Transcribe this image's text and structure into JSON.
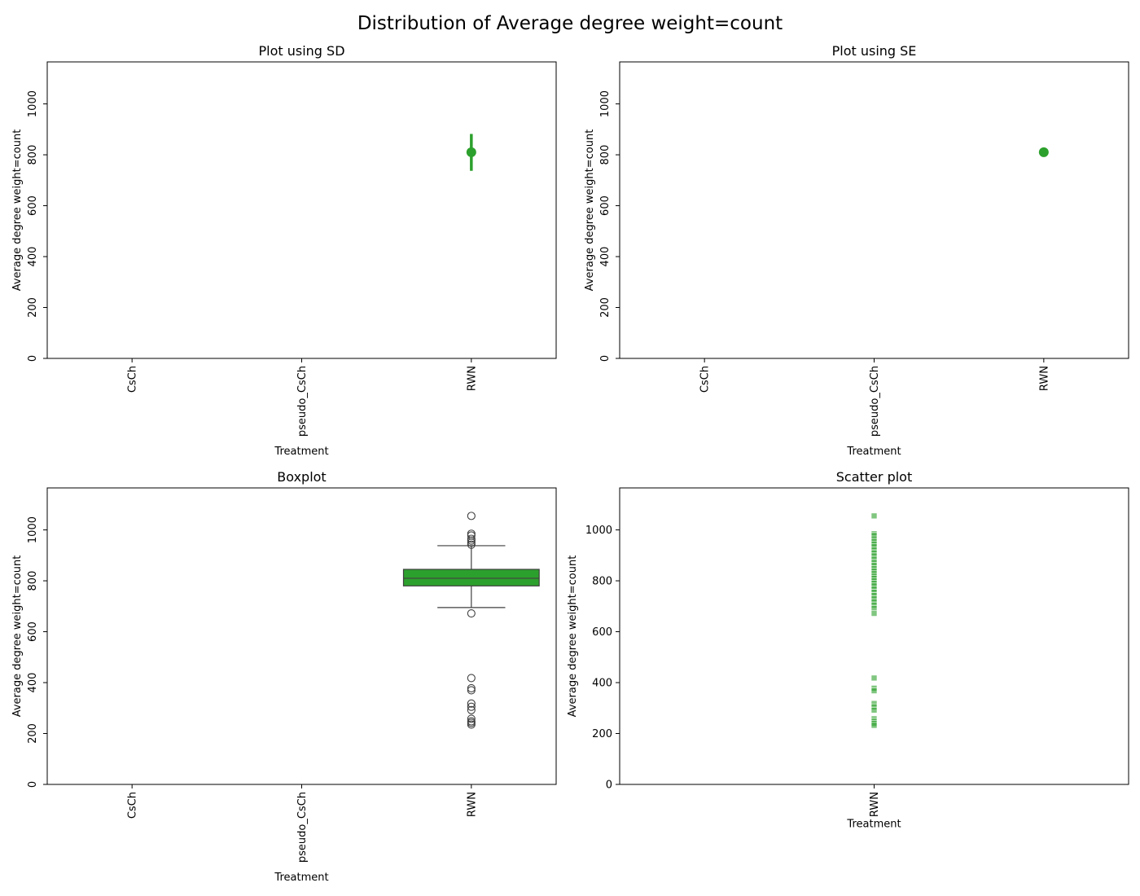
{
  "figure": {
    "title": "Distribution of Average degree weight=count",
    "colors": {
      "series": "#2ca02c",
      "box_edge": "#3f3f3f",
      "axis": "#000000"
    }
  },
  "chart_data": [
    {
      "id": "sd",
      "type": "point",
      "title": "Plot using SD",
      "xlabel": "Treatment",
      "ylabel": "Average degree weight=count",
      "categories": [
        "CsCh",
        "pseudo_CsCh",
        "RWN"
      ],
      "ylim": [
        0,
        1165
      ],
      "yticks": [
        0,
        200,
        400,
        600,
        800,
        1000
      ],
      "ytick_rotation": "vertical",
      "xtick_rotation": "vertical",
      "points": [
        {
          "category": "RWN",
          "mean": 810,
          "err_low": 737,
          "err_high": 882
        }
      ],
      "error_type": "SD"
    },
    {
      "id": "se",
      "type": "point",
      "title": "Plot using SE",
      "xlabel": "Treatment",
      "ylabel": "Average degree weight=count",
      "categories": [
        "CsCh",
        "pseudo_CsCh",
        "RWN"
      ],
      "ylim": [
        0,
        1165
      ],
      "yticks": [
        0,
        200,
        400,
        600,
        800,
        1000
      ],
      "ytick_rotation": "vertical",
      "xtick_rotation": "vertical",
      "points": [
        {
          "category": "RWN",
          "mean": 810,
          "err_low": 805,
          "err_high": 815
        }
      ],
      "error_type": "SE"
    },
    {
      "id": "box",
      "type": "box",
      "title": "Boxplot",
      "xlabel": "Treatment",
      "ylabel": "Average degree weight=count",
      "categories": [
        "CsCh",
        "pseudo_CsCh",
        "RWN"
      ],
      "ylim": [
        0,
        1165
      ],
      "yticks": [
        0,
        200,
        400,
        600,
        800,
        1000
      ],
      "ytick_rotation": "vertical",
      "xtick_rotation": "vertical",
      "boxes": [
        {
          "category": "RWN",
          "q1": 780,
          "median": 810,
          "q3": 845,
          "whisker_low": 695,
          "whisker_high": 938,
          "outliers": [
            1055,
            985,
            978,
            965,
            958,
            950,
            942,
            672,
            418,
            378,
            370,
            318,
            305,
            292,
            258,
            248,
            242,
            235
          ]
        }
      ]
    },
    {
      "id": "scatter",
      "type": "scatter",
      "title": "Scatter plot",
      "xlabel": "Treatment",
      "ylabel": "Average degree weight=count",
      "categories": [
        "RWN"
      ],
      "ylim": [
        0,
        1165
      ],
      "yticks": [
        0,
        200,
        400,
        600,
        800,
        1000
      ],
      "ytick_rotation": "horizontal",
      "xtick_rotation": "vertical",
      "points": [
        {
          "category": "RWN",
          "y": 1055
        },
        {
          "category": "RWN",
          "y": 985
        },
        {
          "category": "RWN",
          "y": 978
        },
        {
          "category": "RWN",
          "y": 965
        },
        {
          "category": "RWN",
          "y": 955
        },
        {
          "category": "RWN",
          "y": 945
        },
        {
          "category": "RWN",
          "y": 935
        },
        {
          "category": "RWN",
          "y": 922
        },
        {
          "category": "RWN",
          "y": 910
        },
        {
          "category": "RWN",
          "y": 898
        },
        {
          "category": "RWN",
          "y": 885
        },
        {
          "category": "RWN",
          "y": 872
        },
        {
          "category": "RWN",
          "y": 860
        },
        {
          "category": "RWN",
          "y": 848
        },
        {
          "category": "RWN",
          "y": 838
        },
        {
          "category": "RWN",
          "y": 828
        },
        {
          "category": "RWN",
          "y": 818
        },
        {
          "category": "RWN",
          "y": 810
        },
        {
          "category": "RWN",
          "y": 800
        },
        {
          "category": "RWN",
          "y": 790
        },
        {
          "category": "RWN",
          "y": 780
        },
        {
          "category": "RWN",
          "y": 768
        },
        {
          "category": "RWN",
          "y": 755
        },
        {
          "category": "RWN",
          "y": 742
        },
        {
          "category": "RWN",
          "y": 730
        },
        {
          "category": "RWN",
          "y": 718
        },
        {
          "category": "RWN",
          "y": 705
        },
        {
          "category": "RWN",
          "y": 692
        },
        {
          "category": "RWN",
          "y": 672
        },
        {
          "category": "RWN",
          "y": 418
        },
        {
          "category": "RWN",
          "y": 378
        },
        {
          "category": "RWN",
          "y": 368
        },
        {
          "category": "RWN",
          "y": 318
        },
        {
          "category": "RWN",
          "y": 305
        },
        {
          "category": "RWN",
          "y": 292
        },
        {
          "category": "RWN",
          "y": 258
        },
        {
          "category": "RWN",
          "y": 248
        },
        {
          "category": "RWN",
          "y": 240
        },
        {
          "category": "RWN",
          "y": 232
        }
      ]
    }
  ]
}
